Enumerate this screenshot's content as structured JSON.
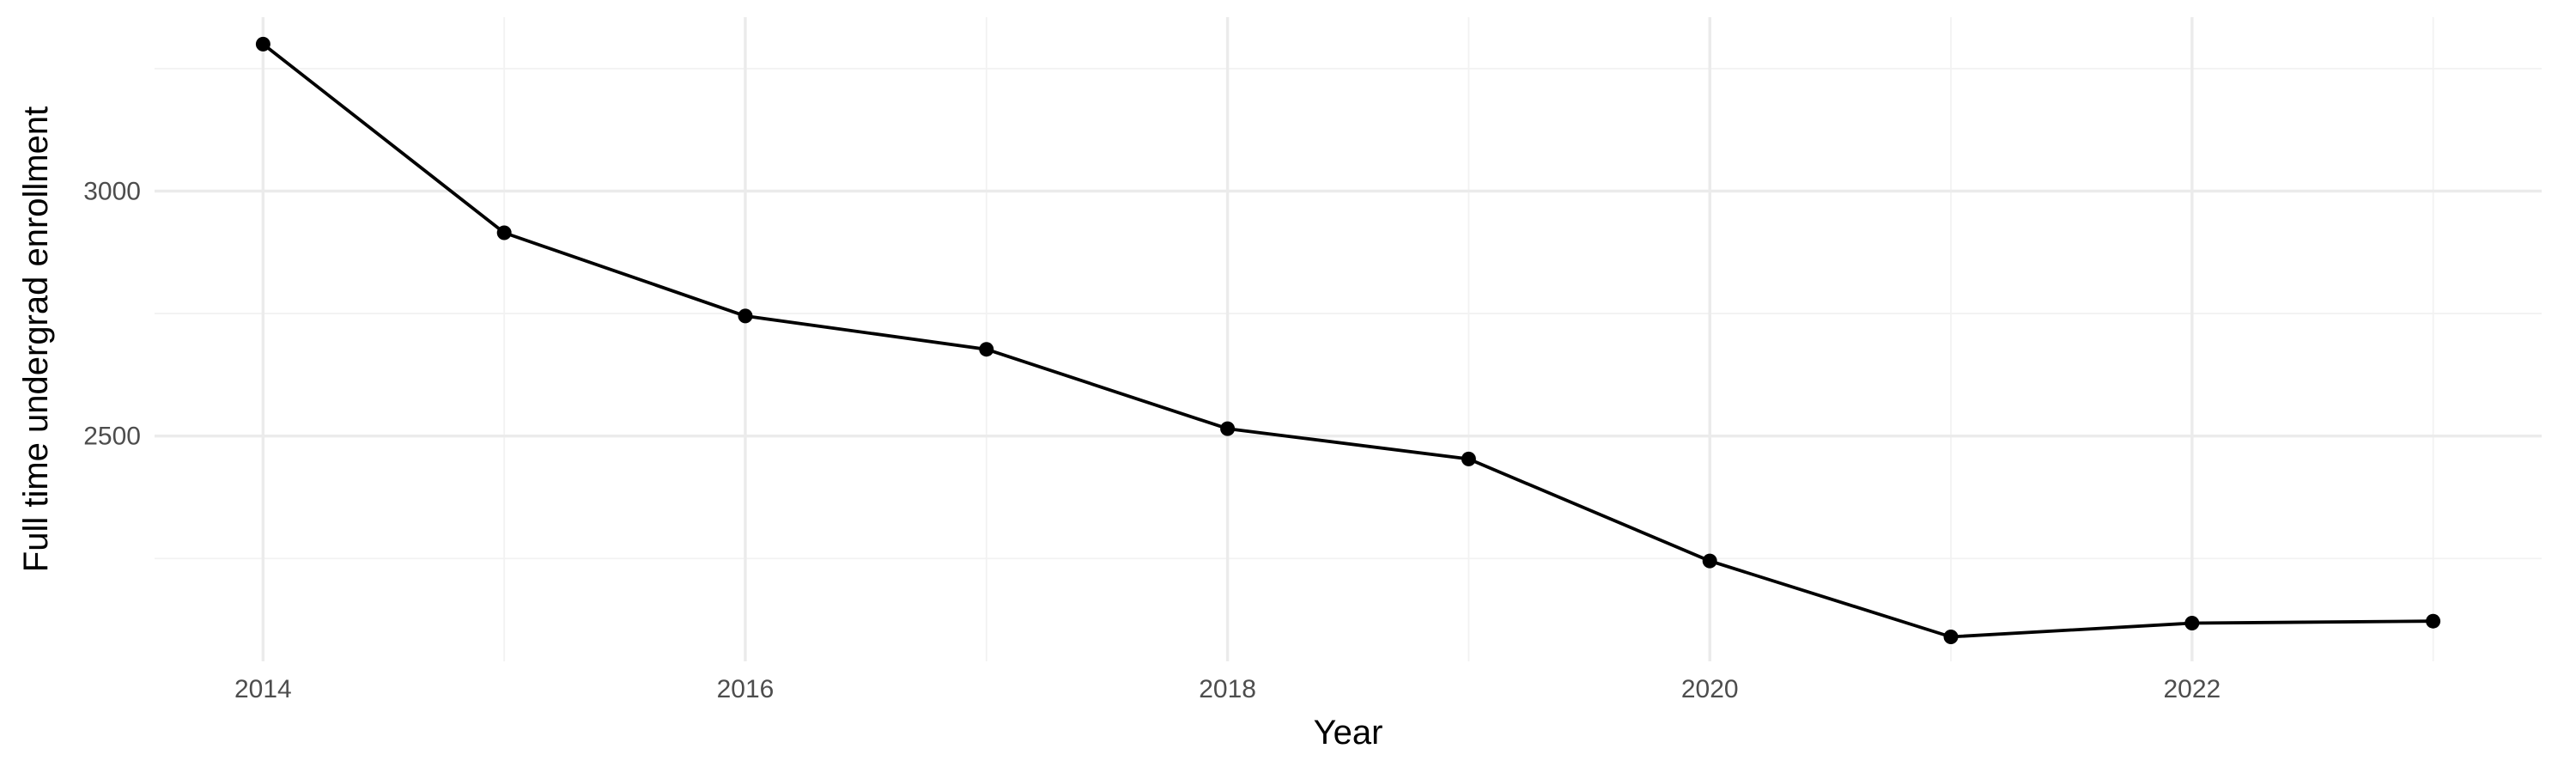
{
  "chart_data": {
    "type": "line",
    "title": "",
    "xlabel": "Year",
    "ylabel": "Full time undergrad enrollment",
    "x": [
      2014,
      2015,
      2016,
      2017,
      2018,
      2019,
      2020,
      2021,
      2022,
      2023
    ],
    "series": [
      {
        "values": [
          3300,
          2915,
          2745,
          2677,
          2515,
          2453,
          2245,
          2090,
          2118,
          2122
        ]
      }
    ],
    "xlim": [
      2013.55,
      2023.45
    ],
    "ylim": [
      2040,
      3355
    ],
    "x_ticks": [
      2014,
      2016,
      2018,
      2020,
      2022
    ],
    "x_tick_labels": [
      "2014",
      "2016",
      "2018",
      "2020",
      "2022"
    ],
    "x_minor_ticks": [
      2015,
      2017,
      2019,
      2021,
      2023
    ],
    "y_ticks": [
      2500,
      3000
    ],
    "y_tick_labels": [
      "2500",
      "3000"
    ],
    "y_minor_ticks": [
      2250,
      2750,
      3250
    ],
    "grid": true,
    "legend": "none",
    "colors": {
      "line": "#000000",
      "points": "#000000",
      "grid_major": "#ebebeb",
      "grid_minor": "#f2f2f2",
      "tick_text": "#4d4d4d",
      "background": "#ffffff"
    }
  }
}
